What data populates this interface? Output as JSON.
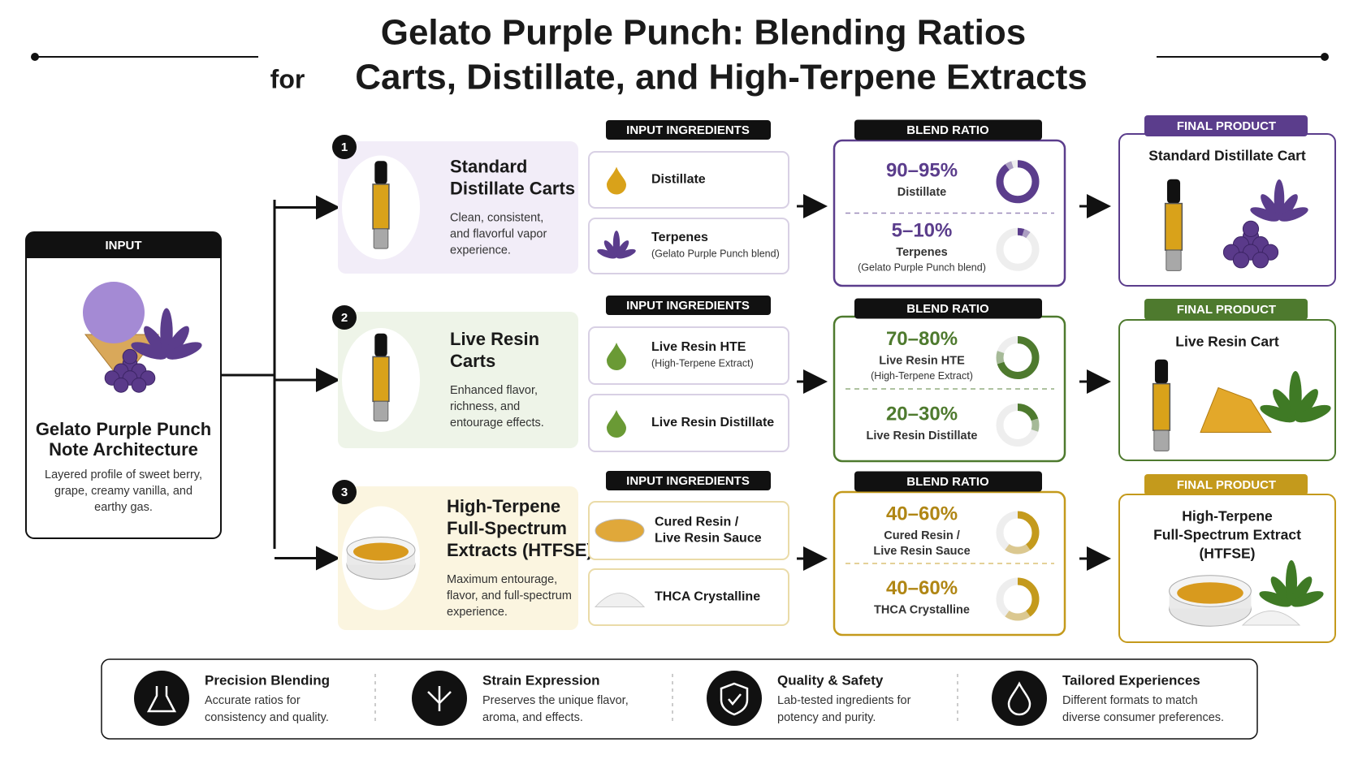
{
  "header": {
    "title": "Gelato Purple Punch: Blending Ratios",
    "subtitle_prefix": "for",
    "subtitle": "Carts, Distillate, and High-Terpene Extracts"
  },
  "input": {
    "label": "INPUT",
    "title_lines": [
      "Gelato Purple Punch",
      "Note Architecture"
    ],
    "description_lines": [
      "Layered profile of sweet berry,",
      "grape, creamy vanilla, and",
      "earthy gas."
    ]
  },
  "rows": [
    {
      "number": 1,
      "color": "#5b3d8c",
      "tint": "#f2edf8",
      "title_lines": [
        "Standard",
        "Distillate Carts"
      ],
      "description_lines": [
        "Clean, consistent,",
        "and flavorful vapor",
        "experience."
      ],
      "ingredients_label": "INPUT INGREDIENTS",
      "ingredients": [
        {
          "name_lines": [
            "Distillate"
          ]
        },
        {
          "name_lines": [
            "Terpenes"
          ],
          "note": "(Gelato Purple Punch blend)"
        }
      ],
      "blend_label": "BLEND RATIO",
      "ratios": [
        {
          "label": "90–95%",
          "min": 90,
          "max": 95,
          "name_lines": [
            "Distillate"
          ]
        },
        {
          "label": "5–10%",
          "min": 5,
          "max": 10,
          "name_lines": [
            "Terpenes"
          ],
          "note": "(Gelato Purple Punch blend)"
        }
      ],
      "final_label": "FINAL PRODUCT",
      "final_title_lines": [
        "Standard Distillate Cart"
      ]
    },
    {
      "number": 2,
      "color": "#4e7a2e",
      "tint": "#eef4e8",
      "title_lines": [
        "Live Resin",
        "Carts"
      ],
      "description_lines": [
        "Enhanced flavor,",
        "richness, and",
        "entourage effects."
      ],
      "ingredients_label": "INPUT INGREDIENTS",
      "ingredients": [
        {
          "name_lines": [
            "Live Resin HTE"
          ],
          "note": "(High-Terpene Extract)"
        },
        {
          "name_lines": [
            "Live Resin Distillate"
          ]
        }
      ],
      "blend_label": "BLEND RATIO",
      "ratios": [
        {
          "label": "70–80%",
          "min": 70,
          "max": 80,
          "name_lines": [
            "Live Resin HTE"
          ],
          "note": "(High-Terpene Extract)"
        },
        {
          "label": "20–30%",
          "min": 20,
          "max": 30,
          "name_lines": [
            "Live Resin Distillate"
          ]
        }
      ],
      "final_label": "FINAL PRODUCT",
      "final_title_lines": [
        "Live Resin Cart"
      ]
    },
    {
      "number": 3,
      "color": "#c49a1c",
      "tint": "#fbf5e0",
      "title_lines": [
        "High-Terpene",
        "Full-Spectrum",
        "Extracts (HTFSE)"
      ],
      "description_lines": [
        "Maximum entourage,",
        "flavor, and full-spectrum",
        "experience."
      ],
      "ingredients_label": "INPUT INGREDIENTS",
      "ingredients": [
        {
          "name_lines": [
            "Cured Resin /",
            "Live Resin Sauce"
          ]
        },
        {
          "name_lines": [
            "THCA Crystalline"
          ]
        }
      ],
      "blend_label": "BLEND RATIO",
      "ratios": [
        {
          "label": "40–60%",
          "min": 40,
          "max": 60,
          "name_lines": [
            "Cured Resin /",
            "Live Resin Sauce"
          ]
        },
        {
          "label": "40–60%",
          "min": 40,
          "max": 60,
          "name_lines": [
            "THCA Crystalline"
          ]
        }
      ],
      "final_label": "FINAL PRODUCT",
      "final_title_lines": [
        "High-Terpene",
        "Full-Spectrum Extract",
        "(HTFSE)"
      ]
    }
  ],
  "features": [
    {
      "title": "Precision Blending",
      "description_lines": [
        "Accurate ratios for",
        "consistency and quality."
      ]
    },
    {
      "title": "Strain Expression",
      "description_lines": [
        "Preserves the unique flavor,",
        "aroma, and effects."
      ]
    },
    {
      "title": "Quality & Safety",
      "description_lines": [
        "Lab-tested ingredients for",
        "potency and purity."
      ]
    },
    {
      "title": "Tailored Experiences",
      "description_lines": [
        "Different formats to match",
        "diverse consumer preferences."
      ]
    }
  ]
}
